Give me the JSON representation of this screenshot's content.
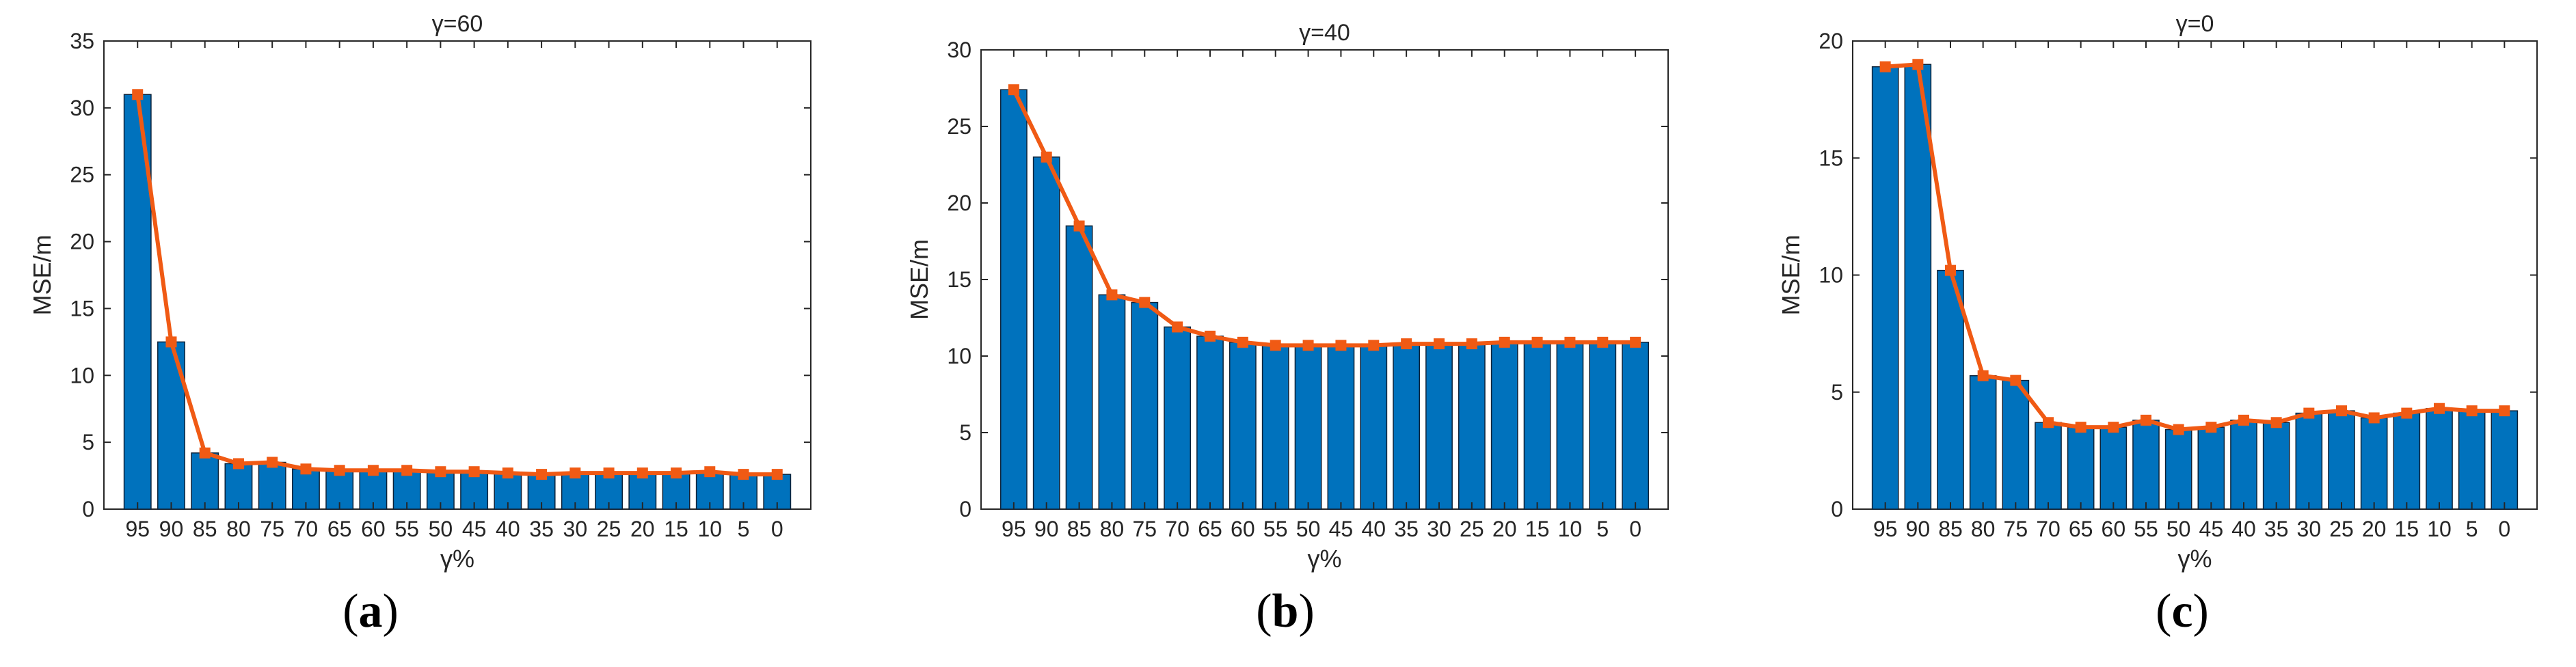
{
  "colors": {
    "bar": "#0072BD",
    "line": "#F05A14",
    "axis": "#262626",
    "background": "#ffffff"
  },
  "chart_data": [
    {
      "type": "bar",
      "panel_label": "a",
      "title": "γ=60",
      "xlabel": "γ%",
      "ylabel": "MSE/m",
      "categories": [
        "95",
        "90",
        "85",
        "80",
        "75",
        "70",
        "65",
        "60",
        "55",
        "50",
        "45",
        "40",
        "35",
        "30",
        "25",
        "20",
        "15",
        "10",
        "5",
        "0"
      ],
      "ylim": [
        0,
        35
      ],
      "yticks": [
        0,
        5,
        10,
        15,
        20,
        25,
        30,
        35
      ],
      "grid": false,
      "series": [
        {
          "kind": "bar",
          "values": [
            31.0,
            12.5,
            4.2,
            3.4,
            3.5,
            3.0,
            2.9,
            2.9,
            2.9,
            2.8,
            2.8,
            2.7,
            2.6,
            2.7,
            2.7,
            2.7,
            2.7,
            2.8,
            2.6,
            2.6
          ]
        },
        {
          "kind": "line",
          "values": [
            31.0,
            12.5,
            4.2,
            3.4,
            3.5,
            3.0,
            2.9,
            2.9,
            2.9,
            2.8,
            2.8,
            2.7,
            2.6,
            2.7,
            2.7,
            2.7,
            2.7,
            2.8,
            2.6,
            2.6
          ]
        }
      ]
    },
    {
      "type": "bar",
      "panel_label": "b",
      "title": "γ=40",
      "xlabel": "γ%",
      "ylabel": "MSE/m",
      "categories": [
        "95",
        "90",
        "85",
        "80",
        "75",
        "70",
        "65",
        "60",
        "55",
        "50",
        "45",
        "40",
        "35",
        "30",
        "25",
        "20",
        "15",
        "10",
        "5",
        "0"
      ],
      "ylim": [
        0,
        30
      ],
      "yticks": [
        0,
        5,
        10,
        15,
        20,
        25,
        30
      ],
      "grid": false,
      "series": [
        {
          "kind": "bar",
          "values": [
            27.4,
            23.0,
            18.5,
            14.0,
            13.5,
            11.9,
            11.3,
            10.9,
            10.7,
            10.7,
            10.7,
            10.7,
            10.8,
            10.8,
            10.8,
            10.9,
            10.9,
            10.9,
            10.9,
            10.9
          ]
        },
        {
          "kind": "line",
          "values": [
            27.4,
            23.0,
            18.5,
            14.0,
            13.5,
            11.9,
            11.3,
            10.9,
            10.7,
            10.7,
            10.7,
            10.7,
            10.8,
            10.8,
            10.8,
            10.9,
            10.9,
            10.9,
            10.9,
            10.9
          ]
        }
      ]
    },
    {
      "type": "bar",
      "panel_label": "c",
      "title": "γ=0",
      "xlabel": "γ%",
      "ylabel": "MSE/m",
      "categories": [
        "95",
        "90",
        "85",
        "80",
        "75",
        "70",
        "65",
        "60",
        "55",
        "50",
        "45",
        "40",
        "35",
        "30",
        "25",
        "20",
        "15",
        "10",
        "5",
        "0"
      ],
      "ylim": [
        0,
        20
      ],
      "yticks": [
        0,
        5,
        10,
        15,
        20
      ],
      "grid": false,
      "series": [
        {
          "kind": "bar",
          "values": [
            18.9,
            19.0,
            10.2,
            5.7,
            5.5,
            3.7,
            3.5,
            3.5,
            3.8,
            3.4,
            3.5,
            3.8,
            3.7,
            4.1,
            4.2,
            3.9,
            4.1,
            4.3,
            4.2,
            4.2
          ]
        },
        {
          "kind": "line",
          "values": [
            18.9,
            19.0,
            10.2,
            5.7,
            5.5,
            3.7,
            3.5,
            3.5,
            3.8,
            3.4,
            3.5,
            3.8,
            3.7,
            4.1,
            4.2,
            3.9,
            4.1,
            4.3,
            4.2,
            4.2
          ]
        }
      ]
    }
  ]
}
